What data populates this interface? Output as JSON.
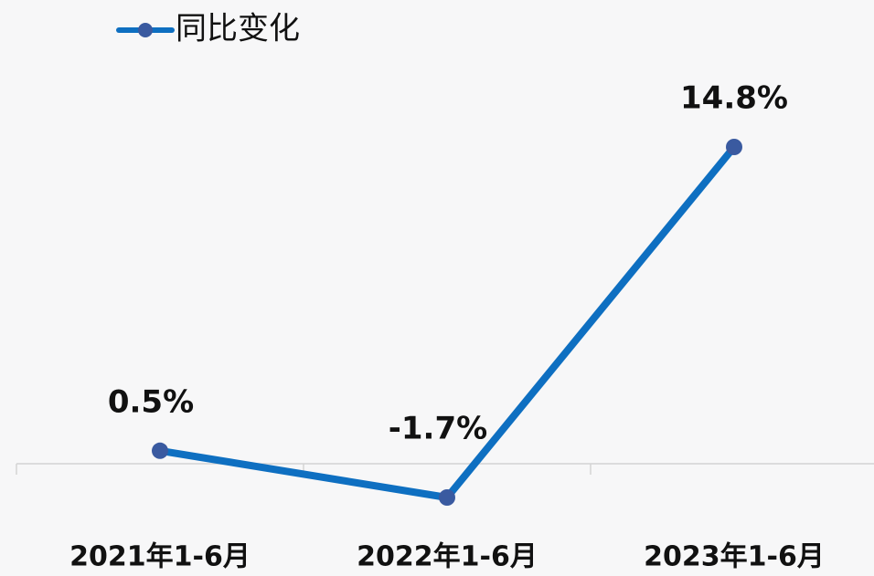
{
  "chart_data": {
    "type": "line",
    "categories": [
      "2021年1-6月",
      "2022年1-6月",
      "2023年1-6月"
    ],
    "series": [
      {
        "name": "同比变化",
        "color": "#0e6fc1",
        "values": [
          0.5,
          -1.7,
          14.8
        ],
        "value_labels": [
          "0.5%",
          "-1.7%",
          "14.8%"
        ]
      }
    ]
  }
}
